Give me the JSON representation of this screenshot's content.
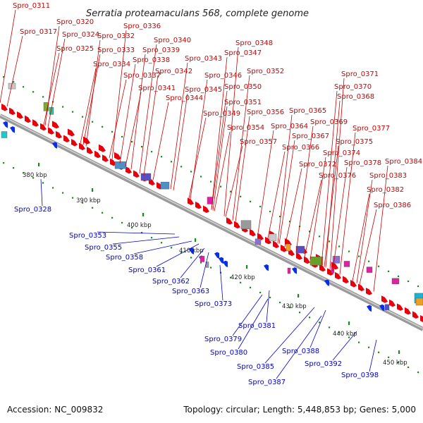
{
  "title": "Serratia proteamaculans 568, complete genome",
  "footer": {
    "accession": "Accession: NC_009832",
    "summary": "Topology: circular; Length: 5,448,853 bp; Genes: 5,000"
  },
  "colors": {
    "forward": "#e8000b",
    "reverse": "#0a2ee8",
    "forward_label": "#cc0000",
    "reverse_label": "#0000cc",
    "backbone": "#9a9a9a",
    "tick": "#1a8a1a"
  },
  "forward_labels": [
    "Spro_0311",
    "Spro_0317",
    "Spro_0320",
    "Spro_0324",
    "Spro_0325",
    "Spro_0332",
    "Spro_0333",
    "Spro_0334",
    "Spro_0336",
    "Spro_0337",
    "Spro_0338",
    "Spro_0339",
    "Spro_0340",
    "Spro_0341",
    "Spro_0342",
    "Spro_0343",
    "Spro_0344",
    "Spro_0345",
    "Spro_0346",
    "Spro_0347",
    "Spro_0348",
    "Spro_0349",
    "Spro_0350",
    "Spro_0351",
    "Spro_0352",
    "Spro_0354",
    "Spro_0356",
    "Spro_0357",
    "Spro_0364",
    "Spro_0365",
    "Spro_0366",
    "Spro_0367",
    "Spro_0368",
    "Spro_0369",
    "Spro_0370",
    "Spro_0371",
    "Spro_0372",
    "Spro_0374",
    "Spro_0375",
    "Spro_0376",
    "Spro_0377",
    "Spro_0378",
    "Spro_0382",
    "Spro_0383",
    "Spro_0384",
    "Spro_0386"
  ],
  "reverse_labels": [
    "Spro_0328",
    "Spro_0353",
    "Spro_0355",
    "Spro_0358",
    "Spro_0361",
    "Spro_0362",
    "Spro_0363",
    "Spro_0373",
    "Spro_0379",
    "Spro_0380",
    "Spro_0381",
    "Spro_0385",
    "Spro_0387",
    "Spro_0388",
    "Spro_0392",
    "Spro_0398"
  ],
  "ticks": [
    "380 kbp",
    "390 kbp",
    "400 kbp",
    "410 kbp",
    "420 kbp",
    "430 kbp",
    "440 kbp",
    "450 kbp"
  ]
}
